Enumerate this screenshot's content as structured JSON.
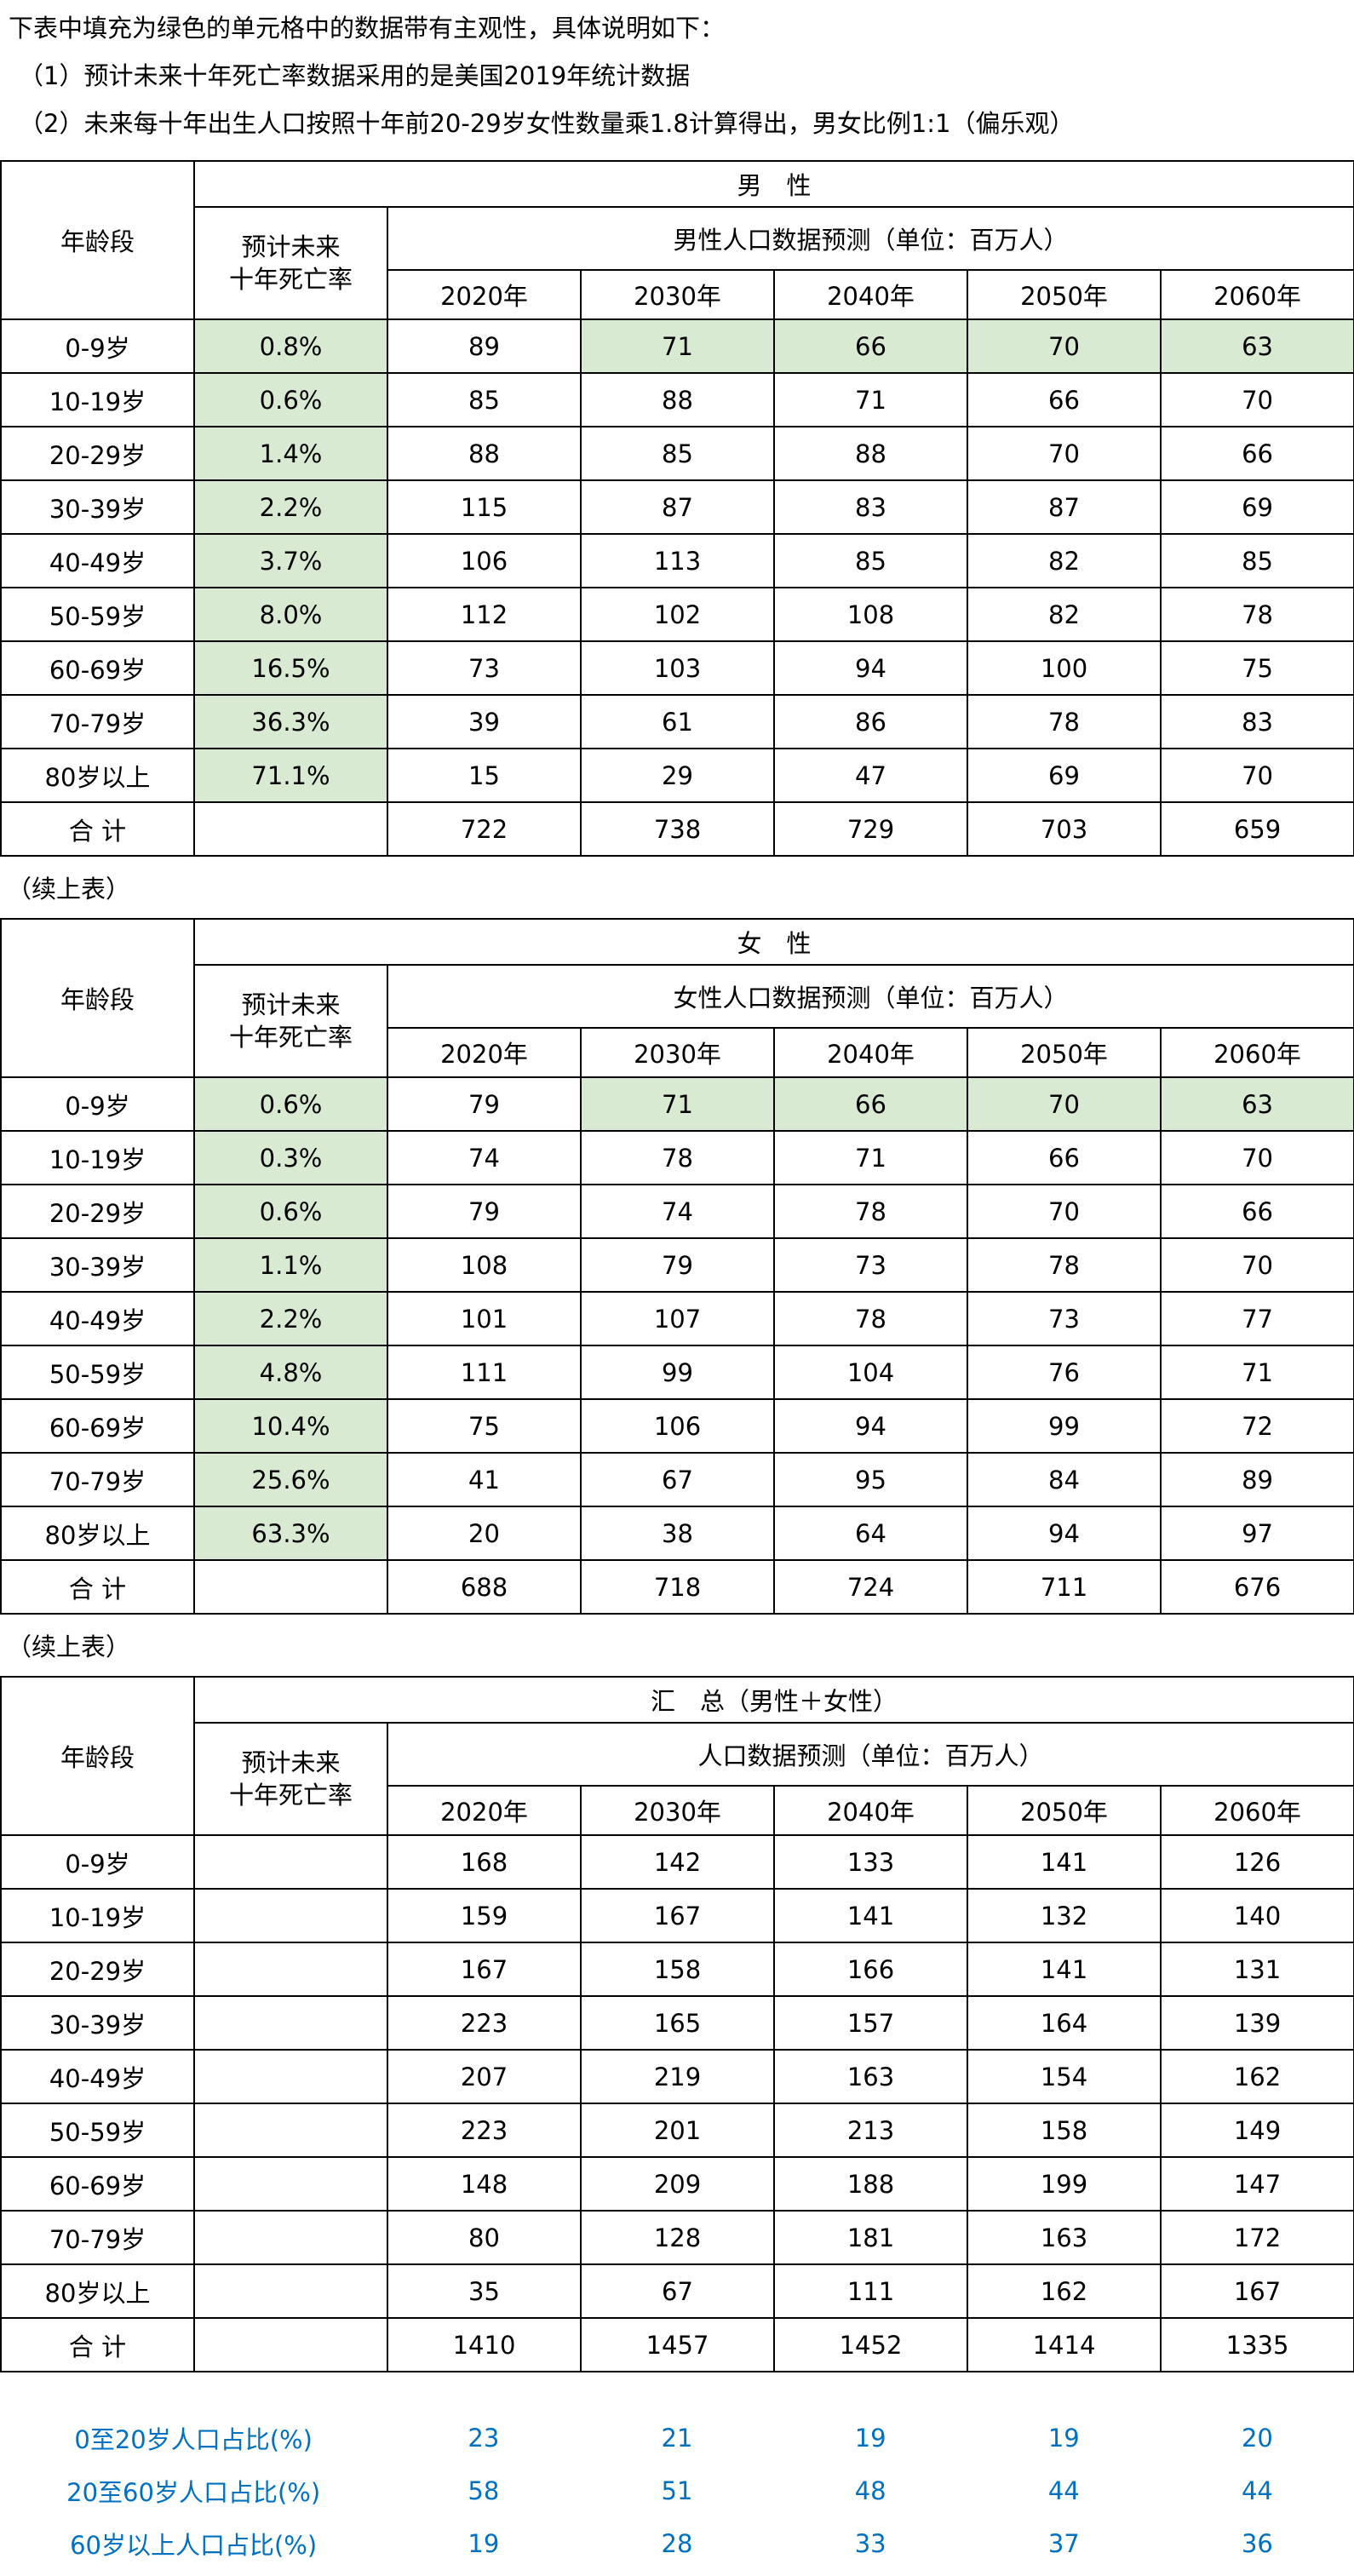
{
  "colors": {
    "green_fill": "#d9ead3",
    "blue_text": "#0070c0",
    "border": "#000000"
  },
  "notes": {
    "line1": "下表中填充为绿色的单元格中的数据带有主观性，具体说明如下：",
    "line2": "（1）预计未来十年死亡率数据采用的是美国2019年统计数据",
    "line3": "（2）未来每十年出生人口按照十年前20-29岁女性数量乘1.8计算得出，男女比例1:1（偏乐观）"
  },
  "continuation_label": "（续上表）",
  "tables": [
    {
      "id": "male",
      "age_header": "年龄段",
      "group_header": "男　性",
      "death_rate_header": [
        "预计未来",
        "十年死亡率"
      ],
      "forecast_header": "男性人口数据预测（单位：百万人）",
      "years": [
        "2020年",
        "2030年",
        "2040年",
        "2050年",
        "2060年"
      ],
      "death_rate_green": true,
      "rows": [
        {
          "age": "0-9岁",
          "death_rate": "0.8%",
          "values": [
            89,
            71,
            66,
            70,
            63
          ],
          "values_green": [
            false,
            true,
            true,
            true,
            true
          ]
        },
        {
          "age": "10-19岁",
          "death_rate": "0.6%",
          "values": [
            85,
            88,
            71,
            66,
            70
          ]
        },
        {
          "age": "20-29岁",
          "death_rate": "1.4%",
          "values": [
            88,
            85,
            88,
            70,
            66
          ]
        },
        {
          "age": "30-39岁",
          "death_rate": "2.2%",
          "values": [
            115,
            87,
            83,
            87,
            69
          ]
        },
        {
          "age": "40-49岁",
          "death_rate": "3.7%",
          "values": [
            106,
            113,
            85,
            82,
            85
          ]
        },
        {
          "age": "50-59岁",
          "death_rate": "8.0%",
          "values": [
            112,
            102,
            108,
            82,
            78
          ]
        },
        {
          "age": "60-69岁",
          "death_rate": "16.5%",
          "values": [
            73,
            103,
            94,
            100,
            75
          ]
        },
        {
          "age": "70-79岁",
          "death_rate": "36.3%",
          "values": [
            39,
            61,
            86,
            78,
            83
          ]
        },
        {
          "age": "80岁以上",
          "death_rate": "71.1%",
          "values": [
            15,
            29,
            47,
            69,
            70
          ]
        },
        {
          "age": "合 计",
          "death_rate": "",
          "values": [
            722,
            738,
            729,
            703,
            659
          ]
        }
      ]
    },
    {
      "id": "female",
      "age_header": "年龄段",
      "group_header": "女　性",
      "death_rate_header": [
        "预计未来",
        "十年死亡率"
      ],
      "forecast_header": "女性人口数据预测（单位：百万人）",
      "years": [
        "2020年",
        "2030年",
        "2040年",
        "2050年",
        "2060年"
      ],
      "death_rate_green": true,
      "rows": [
        {
          "age": "0-9岁",
          "death_rate": "0.6%",
          "values": [
            79,
            71,
            66,
            70,
            63
          ],
          "values_green": [
            false,
            true,
            true,
            true,
            true
          ]
        },
        {
          "age": "10-19岁",
          "death_rate": "0.3%",
          "values": [
            74,
            78,
            71,
            66,
            70
          ]
        },
        {
          "age": "20-29岁",
          "death_rate": "0.6%",
          "values": [
            79,
            74,
            78,
            70,
            66
          ]
        },
        {
          "age": "30-39岁",
          "death_rate": "1.1%",
          "values": [
            108,
            79,
            73,
            78,
            70
          ]
        },
        {
          "age": "40-49岁",
          "death_rate": "2.2%",
          "values": [
            101,
            107,
            78,
            73,
            77
          ]
        },
        {
          "age": "50-59岁",
          "death_rate": "4.8%",
          "values": [
            111,
            99,
            104,
            76,
            71
          ]
        },
        {
          "age": "60-69岁",
          "death_rate": "10.4%",
          "values": [
            75,
            106,
            94,
            99,
            72
          ]
        },
        {
          "age": "70-79岁",
          "death_rate": "25.6%",
          "values": [
            41,
            67,
            95,
            84,
            89
          ]
        },
        {
          "age": "80岁以上",
          "death_rate": "63.3%",
          "values": [
            20,
            38,
            64,
            94,
            97
          ]
        },
        {
          "age": "合 计",
          "death_rate": "",
          "values": [
            688,
            718,
            724,
            711,
            676
          ]
        }
      ]
    },
    {
      "id": "summary",
      "age_header": "年龄段",
      "group_header": "汇　总（男性＋女性）",
      "death_rate_header": [
        "预计未来",
        "十年死亡率"
      ],
      "forecast_header": "人口数据预测（单位：百万人）",
      "years": [
        "2020年",
        "2030年",
        "2040年",
        "2050年",
        "2060年"
      ],
      "death_rate_green": false,
      "rows": [
        {
          "age": "0-9岁",
          "death_rate": "",
          "values": [
            168,
            142,
            133,
            141,
            126
          ]
        },
        {
          "age": "10-19岁",
          "death_rate": "",
          "values": [
            159,
            167,
            141,
            132,
            140
          ]
        },
        {
          "age": "20-29岁",
          "death_rate": "",
          "values": [
            167,
            158,
            166,
            141,
            131
          ]
        },
        {
          "age": "30-39岁",
          "death_rate": "",
          "values": [
            223,
            165,
            157,
            164,
            139
          ]
        },
        {
          "age": "40-49岁",
          "death_rate": "",
          "values": [
            207,
            219,
            163,
            154,
            162
          ]
        },
        {
          "age": "50-59岁",
          "death_rate": "",
          "values": [
            223,
            201,
            213,
            158,
            149
          ]
        },
        {
          "age": "60-69岁",
          "death_rate": "",
          "values": [
            148,
            209,
            188,
            199,
            147
          ]
        },
        {
          "age": "70-79岁",
          "death_rate": "",
          "values": [
            80,
            128,
            181,
            163,
            172
          ]
        },
        {
          "age": "80岁以上",
          "death_rate": "",
          "values": [
            35,
            67,
            111,
            162,
            167
          ]
        },
        {
          "age": "合 计",
          "death_rate": "",
          "values": [
            1410,
            1457,
            1452,
            1414,
            1335
          ]
        }
      ]
    }
  ],
  "ratios": {
    "rows": [
      {
        "label": "0至20岁人口占比(%)",
        "values": [
          23,
          21,
          19,
          19,
          20
        ]
      },
      {
        "label": "20至60岁人口占比(%)",
        "values": [
          58,
          51,
          48,
          44,
          44
        ]
      },
      {
        "label": "60岁以上人口占比(%)",
        "values": [
          19,
          28,
          33,
          37,
          36
        ]
      }
    ]
  }
}
